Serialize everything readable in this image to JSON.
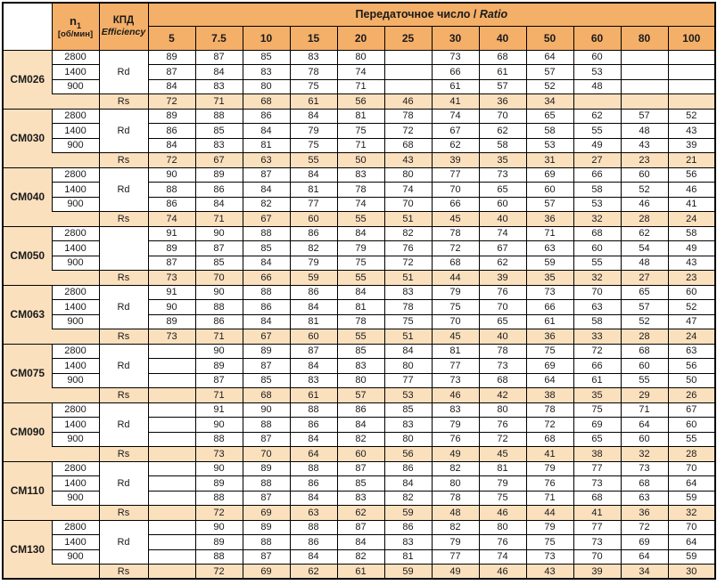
{
  "colors": {
    "header_orange": "#F4AF68",
    "row_peach": "#FBE0BE",
    "border_black": "#000000",
    "text_dark": "#1A1A1A"
  },
  "table": {
    "speed_header": {
      "symbol": "n",
      "sub": "1",
      "unit": "[об/мин]"
    },
    "efficiency_header": {
      "line1": "КПД",
      "line2": "Efficiency"
    },
    "ratio_header": {
      "text": "Передаточное число / ",
      "italic": "Ratio"
    },
    "ratio_columns": [
      "5",
      "7.5",
      "10",
      "15",
      "20",
      "25",
      "30",
      "40",
      "50",
      "60",
      "80",
      "100"
    ],
    "models": [
      {
        "name": "CM026",
        "efficiency_label": "Rd",
        "rs_label": "Rs",
        "speed_rows": [
          {
            "speed": "2800",
            "values": [
              "89",
              "87",
              "85",
              "83",
              "80",
              "",
              "73",
              "68",
              "64",
              "60",
              "",
              ""
            ]
          },
          {
            "speed": "1400",
            "values": [
              "87",
              "84",
              "83",
              "78",
              "74",
              "",
              "66",
              "61",
              "57",
              "53",
              "",
              ""
            ]
          },
          {
            "speed": "900",
            "values": [
              "84",
              "83",
              "80",
              "75",
              "71",
              "",
              "61",
              "57",
              "52",
              "48",
              "",
              ""
            ]
          }
        ],
        "rs_values": [
          "72",
          "71",
          "68",
          "61",
          "56",
          "46",
          "41",
          "36",
          "34",
          "",
          "",
          ""
        ]
      },
      {
        "name": "CM030",
        "efficiency_label": "Rd",
        "rs_label": "Rs",
        "speed_rows": [
          {
            "speed": "2800",
            "values": [
              "89",
              "88",
              "86",
              "84",
              "81",
              "78",
              "74",
              "70",
              "65",
              "62",
              "57",
              "52"
            ]
          },
          {
            "speed": "1400",
            "values": [
              "86",
              "85",
              "84",
              "79",
              "75",
              "72",
              "67",
              "62",
              "58",
              "55",
              "48",
              "43"
            ]
          },
          {
            "speed": "900",
            "values": [
              "84",
              "83",
              "81",
              "75",
              "71",
              "68",
              "62",
              "58",
              "53",
              "49",
              "43",
              "39"
            ]
          }
        ],
        "rs_values": [
          "72",
          "67",
          "63",
          "55",
          "50",
          "43",
          "39",
          "35",
          "31",
          "27",
          "23",
          "21"
        ]
      },
      {
        "name": "CM040",
        "efficiency_label": "Rd",
        "rs_label": "Rs",
        "speed_rows": [
          {
            "speed": "2800",
            "values": [
              "90",
              "89",
              "87",
              "84",
              "83",
              "80",
              "77",
              "73",
              "69",
              "66",
              "60",
              "56"
            ]
          },
          {
            "speed": "1400",
            "values": [
              "88",
              "86",
              "84",
              "81",
              "78",
              "74",
              "70",
              "65",
              "60",
              "58",
              "52",
              "46"
            ]
          },
          {
            "speed": "900",
            "values": [
              "86",
              "84",
              "82",
              "77",
              "74",
              "70",
              "66",
              "60",
              "57",
              "53",
              "46",
              "41"
            ]
          }
        ],
        "rs_values": [
          "74",
          "71",
          "67",
          "60",
          "55",
          "51",
          "45",
          "40",
          "36",
          "32",
          "28",
          "24"
        ]
      },
      {
        "name": "CM050",
        "efficiency_label": "",
        "rs_label": "Rs",
        "speed_rows": [
          {
            "speed": "2800",
            "values": [
              "91",
              "90",
              "88",
              "86",
              "84",
              "82",
              "78",
              "74",
              "71",
              "68",
              "62",
              "58"
            ]
          },
          {
            "speed": "1400",
            "values": [
              "89",
              "87",
              "85",
              "82",
              "79",
              "76",
              "72",
              "67",
              "63",
              "60",
              "54",
              "49"
            ]
          },
          {
            "speed": "900",
            "values": [
              "87",
              "85",
              "84",
              "79",
              "75",
              "72",
              "68",
              "62",
              "59",
              "55",
              "48",
              "43"
            ]
          }
        ],
        "rs_values": [
          "73",
          "70",
          "66",
          "59",
          "55",
          "51",
          "44",
          "39",
          "35",
          "32",
          "27",
          "23"
        ]
      },
      {
        "name": "CM063",
        "efficiency_label": "Rd",
        "rs_label": "Rs",
        "speed_rows": [
          {
            "speed": "2800",
            "values": [
              "91",
              "90",
              "88",
              "86",
              "84",
              "83",
              "79",
              "76",
              "73",
              "70",
              "65",
              "60"
            ]
          },
          {
            "speed": "1400",
            "values": [
              "90",
              "88",
              "86",
              "84",
              "81",
              "78",
              "75",
              "70",
              "66",
              "63",
              "57",
              "52"
            ]
          },
          {
            "speed": "900",
            "values": [
              "89",
              "86",
              "84",
              "81",
              "78",
              "75",
              "70",
              "65",
              "61",
              "58",
              "52",
              "47"
            ]
          }
        ],
        "rs_values": [
          "73",
          "71",
          "67",
          "60",
          "55",
          "51",
          "45",
          "40",
          "36",
          "33",
          "28",
          "24"
        ]
      },
      {
        "name": "CM075",
        "efficiency_label": "Rd",
        "rs_label": "Rs",
        "speed_rows": [
          {
            "speed": "2800",
            "values": [
              "",
              "90",
              "89",
              "87",
              "85",
              "84",
              "81",
              "78",
              "75",
              "72",
              "68",
              "63"
            ]
          },
          {
            "speed": "1400",
            "values": [
              "",
              "89",
              "87",
              "84",
              "83",
              "80",
              "77",
              "73",
              "69",
              "66",
              "60",
              "56"
            ]
          },
          {
            "speed": "900",
            "values": [
              "",
              "87",
              "85",
              "83",
              "80",
              "77",
              "73",
              "68",
              "64",
              "61",
              "55",
              "50"
            ]
          }
        ],
        "rs_values": [
          "",
          "71",
          "68",
          "61",
          "57",
          "53",
          "46",
          "42",
          "38",
          "35",
          "29",
          "26"
        ]
      },
      {
        "name": "CM090",
        "efficiency_label": "Rd",
        "rs_label": "Rs",
        "speed_rows": [
          {
            "speed": "2800",
            "values": [
              "",
              "91",
              "90",
              "88",
              "86",
              "85",
              "83",
              "80",
              "78",
              "75",
              "71",
              "67"
            ]
          },
          {
            "speed": "1400",
            "values": [
              "",
              "90",
              "88",
              "86",
              "84",
              "83",
              "79",
              "76",
              "72",
              "69",
              "64",
              "60"
            ]
          },
          {
            "speed": "900",
            "values": [
              "",
              "88",
              "87",
              "84",
              "82",
              "80",
              "76",
              "72",
              "68",
              "65",
              "60",
              "55"
            ]
          }
        ],
        "rs_values": [
          "",
          "73",
          "70",
          "64",
          "60",
          "56",
          "49",
          "45",
          "41",
          "38",
          "32",
          "28"
        ]
      },
      {
        "name": "CM110",
        "efficiency_label": "Rd",
        "rs_label": "Rs",
        "speed_rows": [
          {
            "speed": "2800",
            "values": [
              "",
              "90",
              "89",
              "88",
              "87",
              "86",
              "82",
              "81",
              "79",
              "77",
              "73",
              "70"
            ]
          },
          {
            "speed": "1400",
            "values": [
              "",
              "89",
              "88",
              "86",
              "85",
              "84",
              "80",
              "79",
              "76",
              "73",
              "68",
              "64"
            ]
          },
          {
            "speed": "900",
            "values": [
              "",
              "88",
              "87",
              "84",
              "83",
              "82",
              "78",
              "75",
              "71",
              "68",
              "63",
              "59"
            ]
          }
        ],
        "rs_values": [
          "",
          "72",
          "69",
          "63",
          "62",
          "59",
          "48",
          "46",
          "44",
          "41",
          "36",
          "32"
        ]
      },
      {
        "name": "CM130",
        "efficiency_label": "Rd",
        "rs_label": "Rs",
        "speed_rows": [
          {
            "speed": "2800",
            "values": [
              "",
              "90",
              "89",
              "88",
              "87",
              "86",
              "82",
              "80",
              "79",
              "77",
              "72",
              "70"
            ]
          },
          {
            "speed": "1400",
            "values": [
              "",
              "89",
              "88",
              "86",
              "84",
              "83",
              "79",
              "76",
              "75",
              "73",
              "69",
              "64"
            ]
          },
          {
            "speed": "900",
            "values": [
              "",
              "88",
              "87",
              "84",
              "82",
              "81",
              "77",
              "74",
              "73",
              "70",
              "64",
              "59"
            ]
          }
        ],
        "rs_values": [
          "",
          "72",
          "69",
          "62",
          "61",
          "59",
          "49",
          "46",
          "43",
          "39",
          "34",
          "30"
        ]
      }
    ]
  }
}
